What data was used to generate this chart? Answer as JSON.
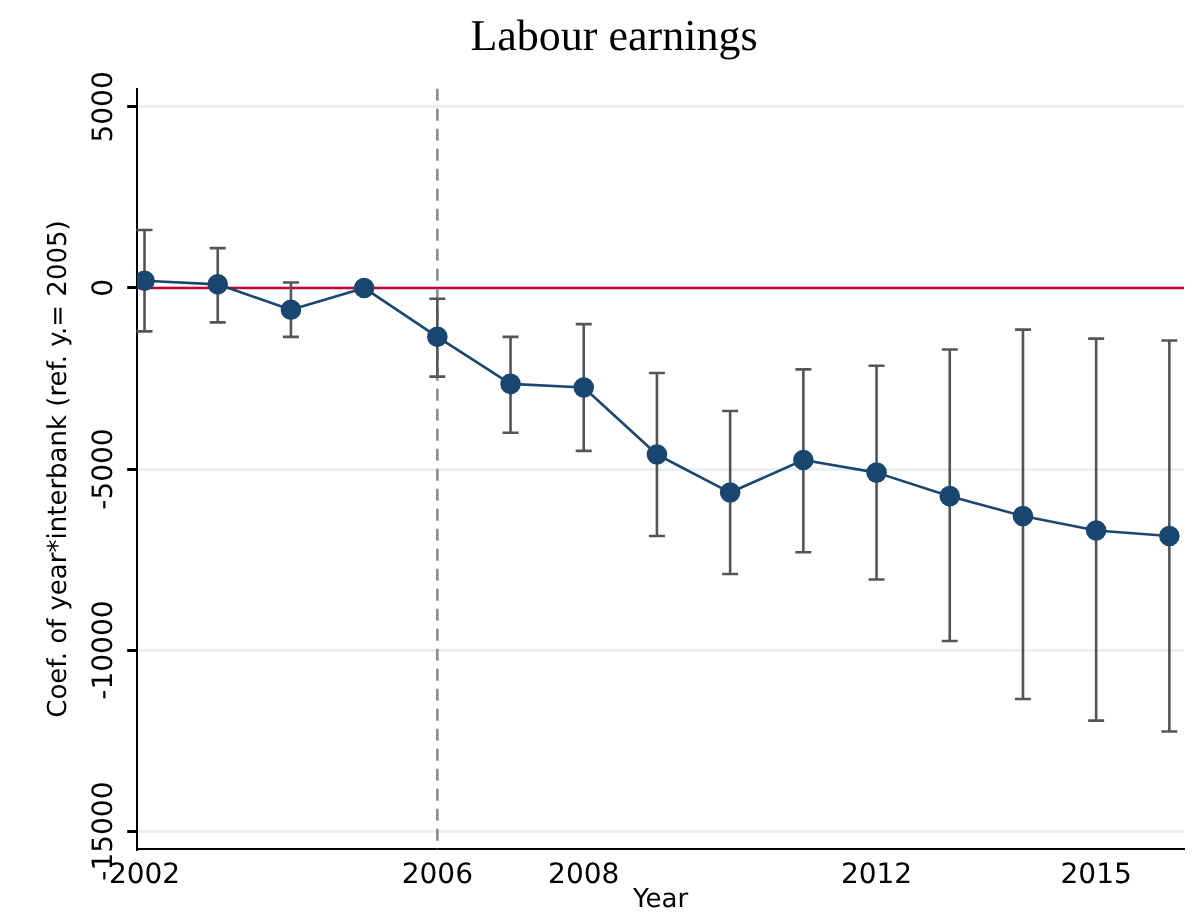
{
  "chart_data": {
    "type": "line",
    "title": "Labour earnings",
    "xlabel": "Year",
    "ylabel": "Coef. of year*interbank (ref. y.= 2005)",
    "x": [
      2002,
      2003,
      2004,
      2005,
      2006,
      2007,
      2008,
      2009,
      2010,
      2011,
      2012,
      2013,
      2014,
      2015,
      2016
    ],
    "series": [
      {
        "color": "#1a476f",
        "values": [
          200,
          100,
          -600,
          0,
          -1350,
          -2650,
          -2750,
          -4600,
          -5650,
          -4750,
          -5100,
          -5750,
          -6300,
          -6700,
          -6850
        ],
        "errors": [
          [
            -1200,
            1600
          ],
          [
            -950,
            1100
          ],
          [
            -1350,
            150
          ],
          null,
          [
            -2450,
            -300
          ],
          [
            -4000,
            -1350
          ],
          [
            -4500,
            -1000
          ],
          [
            -6850,
            -2350
          ],
          [
            -7900,
            -3400
          ],
          [
            -7300,
            -2250
          ],
          [
            -8050,
            -2150
          ],
          [
            -9750,
            -1700
          ],
          [
            -11350,
            -1150
          ],
          [
            -11950,
            -1400
          ],
          [
            -12250,
            -1450
          ]
        ]
      }
    ],
    "xlim": [
      2001.9,
      2016.2
    ],
    "xticks": [
      2002,
      2006,
      2008,
      2012,
      2015
    ],
    "ylim": [
      -15500,
      5500
    ],
    "yticks": [
      -15000,
      -10000,
      -5000,
      0,
      5000
    ],
    "ref_lines": [
      {
        "axis": "y",
        "value": 0,
        "color": "#c10534"
      },
      {
        "axis": "x",
        "value": 2006,
        "color": "#8c8c8c",
        "line_style": "dashed"
      }
    ],
    "grid": "y",
    "legend": false,
    "marker": "circle",
    "line_style": "solid"
  }
}
